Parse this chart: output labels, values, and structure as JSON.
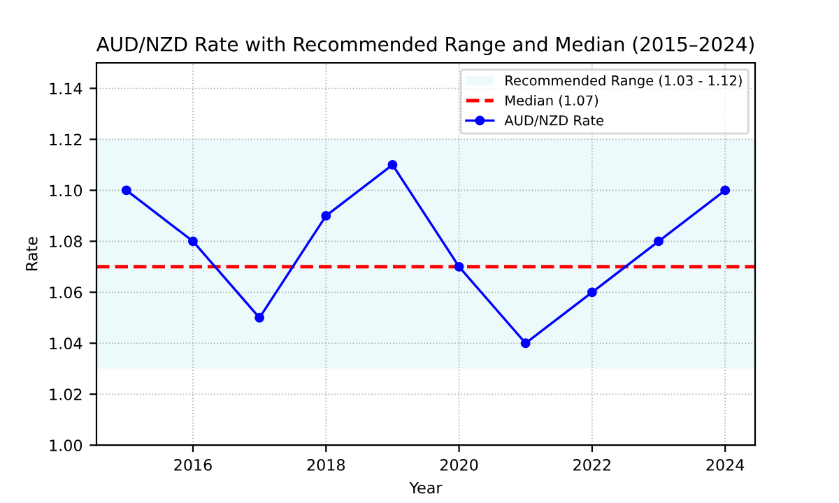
{
  "chart_data": {
    "type": "line",
    "title": "AUD/NZD Rate with Recommended Range and Median (2015–2024)",
    "xlabel": "Year",
    "ylabel": "Rate",
    "x": [
      2015,
      2016,
      2017,
      2018,
      2019,
      2020,
      2021,
      2022,
      2023,
      2024
    ],
    "series": [
      {
        "name": "AUD/NZD Rate",
        "color": "#0000ff",
        "values": [
          1.1,
          1.08,
          1.05,
          1.09,
          1.11,
          1.07,
          1.04,
          1.06,
          1.08,
          1.1
        ]
      }
    ],
    "bands": [
      {
        "axis": "y",
        "from": 1.03,
        "to": 1.12,
        "label": "Recommended Range (1.03 - 1.12)",
        "color": "#e0f7fa"
      }
    ],
    "ref_lines": [
      {
        "axis": "y",
        "value": 1.07,
        "label": "Median (1.07)",
        "color": "#ff0000",
        "line_style": "dashed"
      }
    ],
    "xlim": [
      2014.55,
      2024.45
    ],
    "xticks": [
      2016,
      2018,
      2020,
      2022,
      2024
    ],
    "ylim": [
      1.0,
      1.15
    ],
    "yticks": [
      {
        "value": 1.0,
        "label": "1.00"
      },
      1.02,
      1.04,
      1.06,
      1.08,
      {
        "value": 1.1,
        "label": "1.10"
      },
      1.12,
      1.14
    ],
    "grid": true,
    "legend": "top right",
    "marker": "circle",
    "line_style": "solid"
  }
}
